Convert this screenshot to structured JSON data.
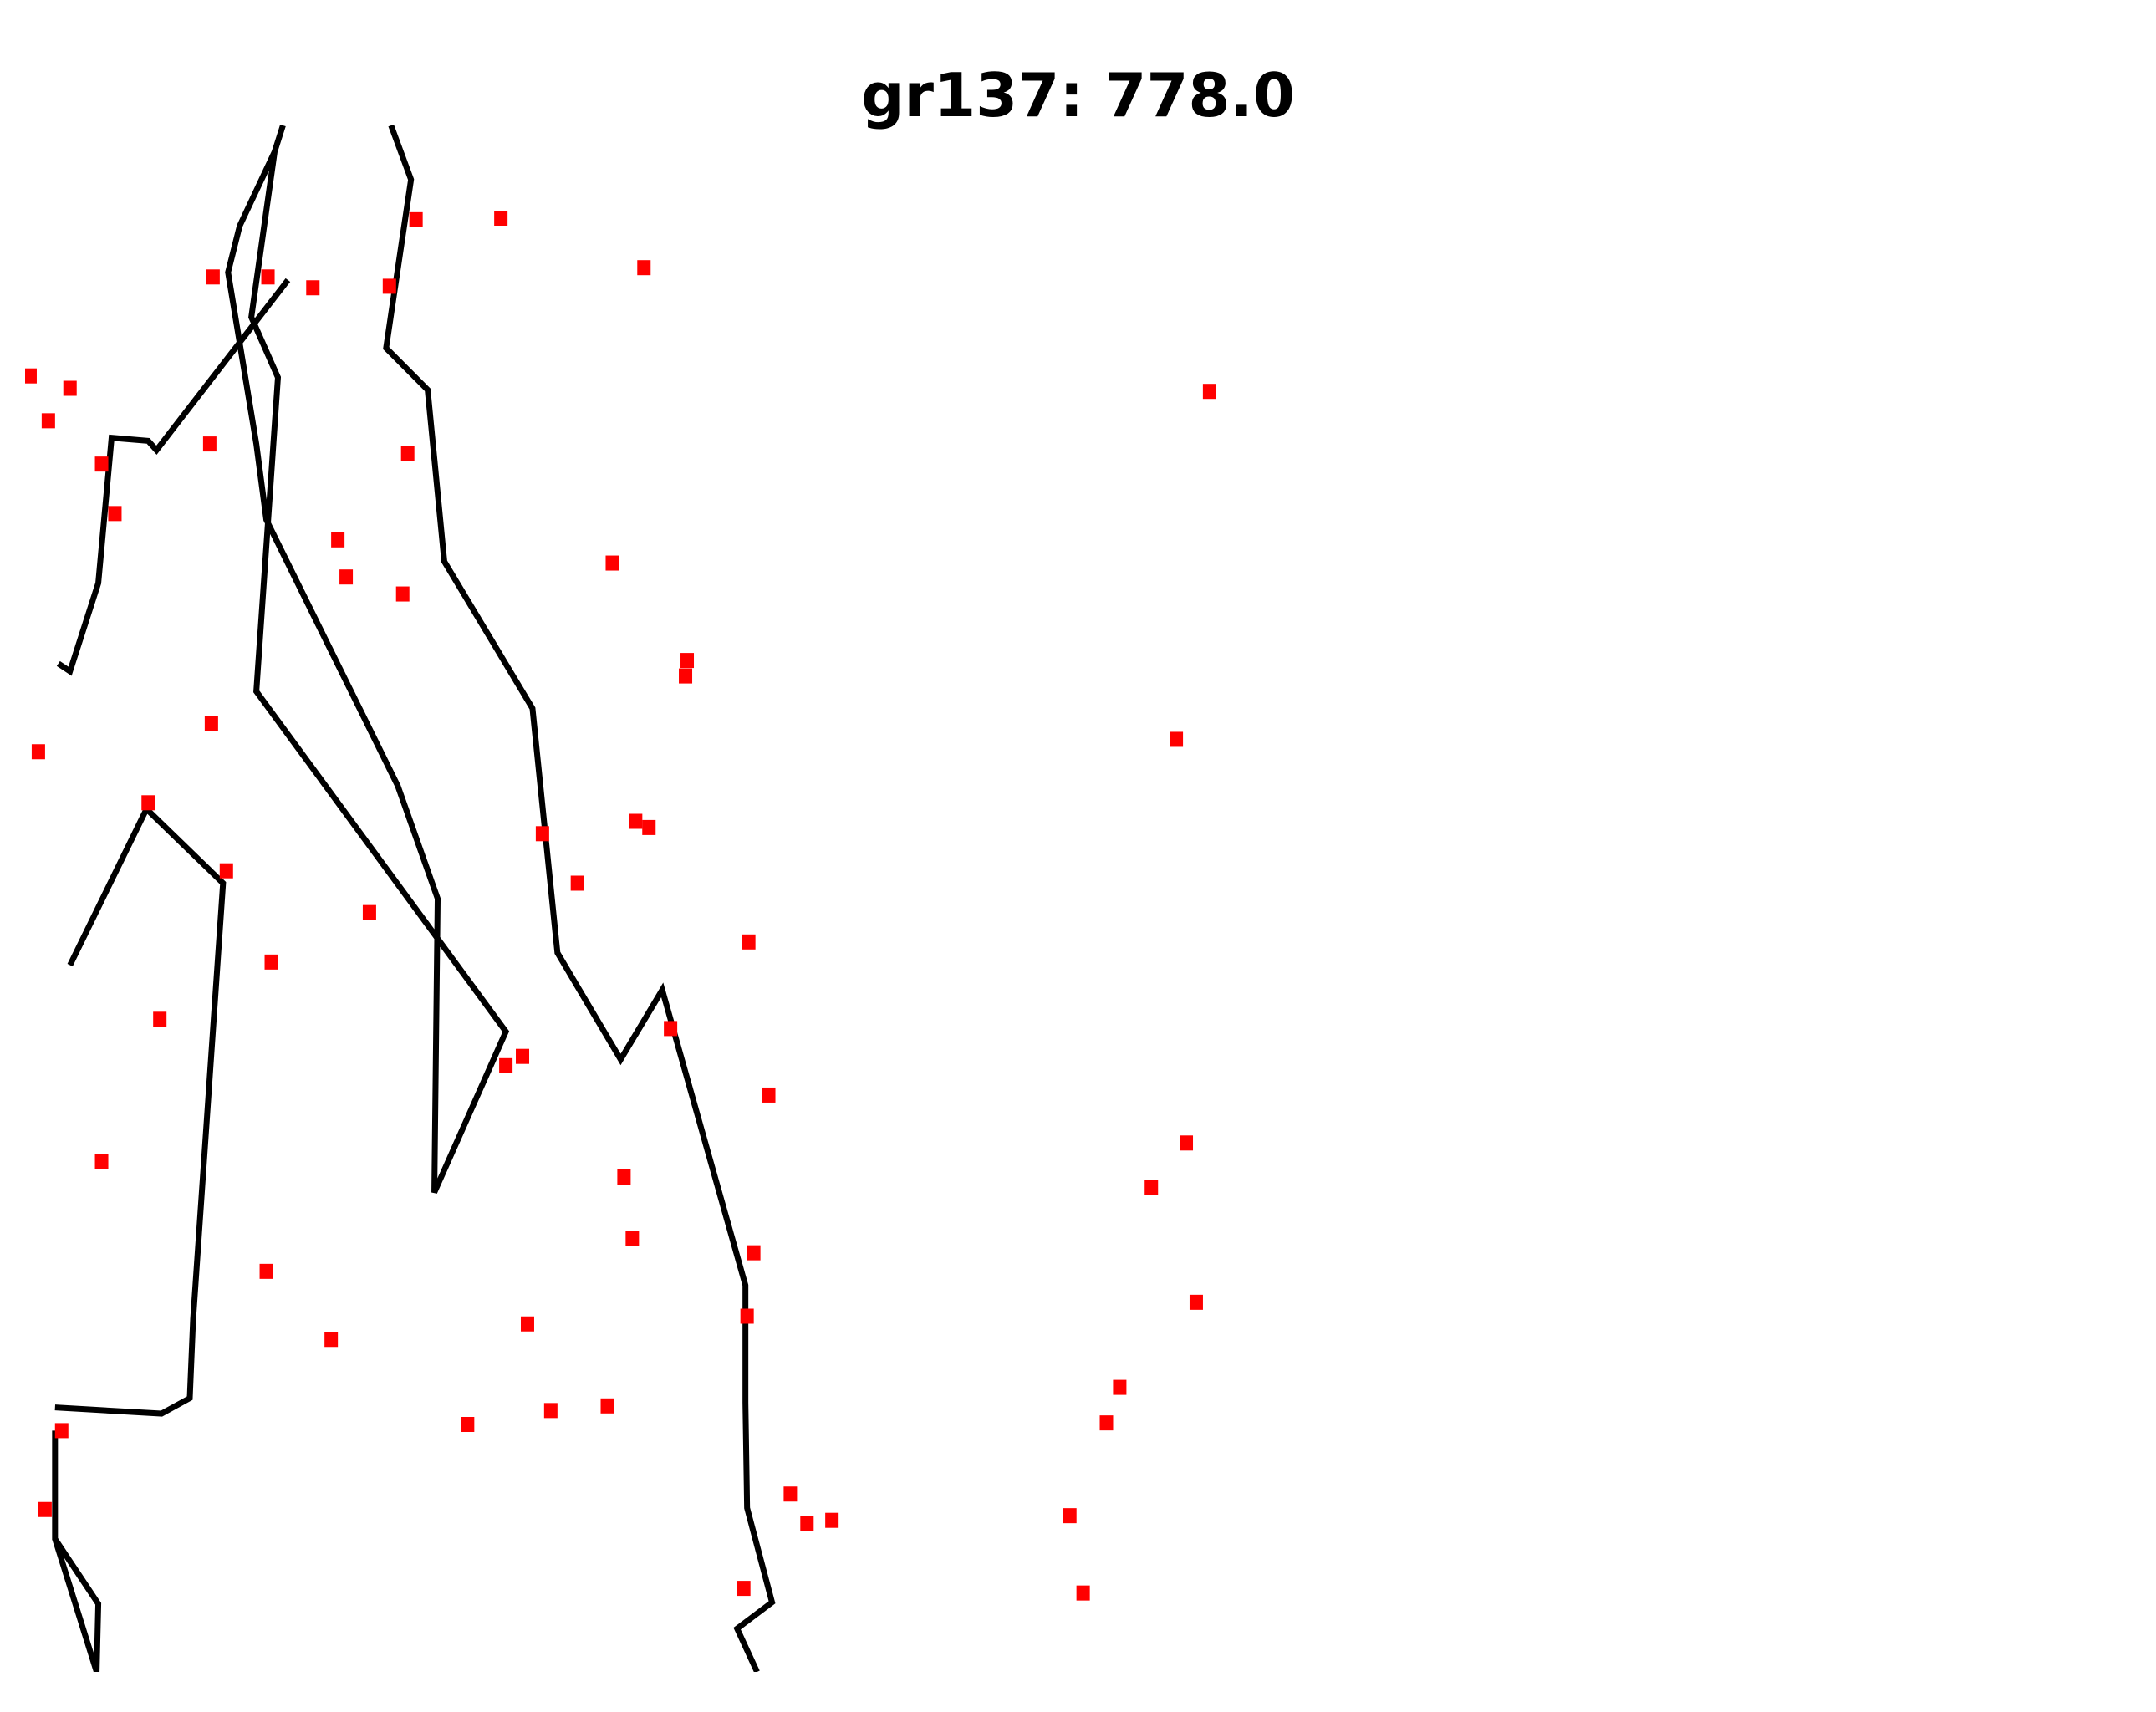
{
  "chart_data": {
    "type": "line",
    "title": "gr137: 778.0",
    "xlabel": "",
    "ylabel": "",
    "axes": "off",
    "grid": false,
    "legend": "none",
    "colors": {
      "path": "#000000",
      "marker": "#ff0000"
    },
    "xlim": [
      0,
      100
    ],
    "ylim": [
      0,
      100
    ],
    "marker_points": [
      [
        11.3,
        90.2
      ],
      [
        14.6,
        90.2
      ],
      [
        0.3,
        83.8
      ],
      [
        2.7,
        83.0
      ],
      [
        11.1,
        79.4
      ],
      [
        17.3,
        89.5
      ],
      [
        21.9,
        89.6
      ],
      [
        4.6,
        78.1
      ],
      [
        7.4,
        56.2
      ],
      [
        12.1,
        51.8
      ],
      [
        14.5,
        25.9
      ],
      [
        5.4,
        74.9
      ],
      [
        4.6,
        33.0
      ],
      [
        14.8,
        45.9
      ],
      [
        1.4,
        80.9
      ],
      [
        28.6,
        94.0
      ],
      [
        20.7,
        49.1
      ],
      [
        18.4,
        21.5
      ],
      [
        22.7,
        69.7
      ],
      [
        2.2,
        15.6
      ],
      [
        18.8,
        73.2
      ],
      [
        26.6,
        16.0
      ],
      [
        19.3,
        70.8
      ],
      [
        23.0,
        78.8
      ],
      [
        23.5,
        93.9
      ],
      [
        29.9,
        39.8
      ],
      [
        30.2,
        22.5
      ],
      [
        31.6,
        16.9
      ],
      [
        36.0,
        32.0
      ],
      [
        35.0,
        17.2
      ],
      [
        39.8,
        65.4
      ],
      [
        43.5,
        47.2
      ],
      [
        43.4,
        23.0
      ],
      [
        43.8,
        27.1
      ],
      [
        43.2,
        5.4
      ],
      [
        38.8,
        41.6
      ],
      [
        31.1,
        54.2
      ],
      [
        36.5,
        28.0
      ],
      [
        69.2,
        60.3
      ],
      [
        11.2,
        61.3
      ],
      [
        1.2,
        10.5
      ],
      [
        62.8,
        10.1
      ],
      [
        67.7,
        31.3
      ],
      [
        63.6,
        5.1
      ],
      [
        65.8,
        18.4
      ],
      [
        65.0,
        16.1
      ],
      [
        69.8,
        34.2
      ],
      [
        70.4,
        23.9
      ],
      [
        71.2,
        82.8
      ],
      [
        48.5,
        9.8
      ],
      [
        46.0,
        11.5
      ],
      [
        8.1,
        42.2
      ],
      [
        36.7,
        55.0
      ],
      [
        39.7,
        64.4
      ],
      [
        37.2,
        90.8
      ],
      [
        35.3,
        71.7
      ],
      [
        37.5,
        54.6
      ],
      [
        28.9,
        39.2
      ],
      [
        33.2,
        51.0
      ],
      [
        44.7,
        37.3
      ],
      [
        47.0,
        9.6
      ],
      [
        0.8,
        59.5
      ]
    ],
    "segments": [
      [
        [
          15.5,
          100.0
        ],
        [
          15.0,
          98.3
        ],
        [
          13.6,
          87.6
        ],
        [
          15.2,
          83.7
        ],
        [
          13.9,
          63.4
        ],
        [
          28.9,
          41.4
        ],
        [
          24.6,
          31.0
        ],
        [
          24.8,
          50.0
        ],
        [
          22.4,
          57.3
        ],
        [
          14.5,
          74.5
        ],
        [
          13.9,
          79.4
        ],
        [
          12.2,
          90.5
        ],
        [
          12.9,
          93.5
        ],
        [
          15.0,
          98.3
        ]
      ],
      [
        [
          22.0,
          100.0
        ],
        [
          23.2,
          96.5
        ],
        [
          21.7,
          85.6
        ],
        [
          24.2,
          82.9
        ],
        [
          25.2,
          71.8
        ],
        [
          30.5,
          62.3
        ],
        [
          32.0,
          46.5
        ],
        [
          35.8,
          39.6
        ],
        [
          38.3,
          44.1
        ],
        [
          43.3,
          25.0
        ],
        [
          43.3,
          17.4
        ],
        [
          43.4,
          10.6
        ],
        [
          44.9,
          4.5
        ],
        [
          42.8,
          2.8
        ],
        [
          44.0,
          0
        ]
      ],
      [
        [
          15.8,
          90.0
        ],
        [
          7.9,
          79.0
        ],
        [
          7.4,
          79.6
        ],
        [
          5.2,
          79.8
        ],
        [
          4.4,
          70.4
        ],
        [
          2.7,
          64.7
        ],
        [
          2.0,
          65.2
        ]
      ],
      [
        [
          2.7,
          45.7
        ],
        [
          7.3,
          55.8
        ],
        [
          11.9,
          51.0
        ],
        [
          10.1,
          22.8
        ],
        [
          9.9,
          17.7
        ],
        [
          8.2,
          16.7
        ],
        [
          1.8,
          17.1
        ]
      ],
      [
        [
          1.8,
          15.6
        ],
        [
          1.8,
          8.6
        ],
        [
          4.4,
          4.4
        ],
        [
          4.3,
          0.0
        ],
        [
          1.8,
          8.6
        ]
      ]
    ]
  }
}
